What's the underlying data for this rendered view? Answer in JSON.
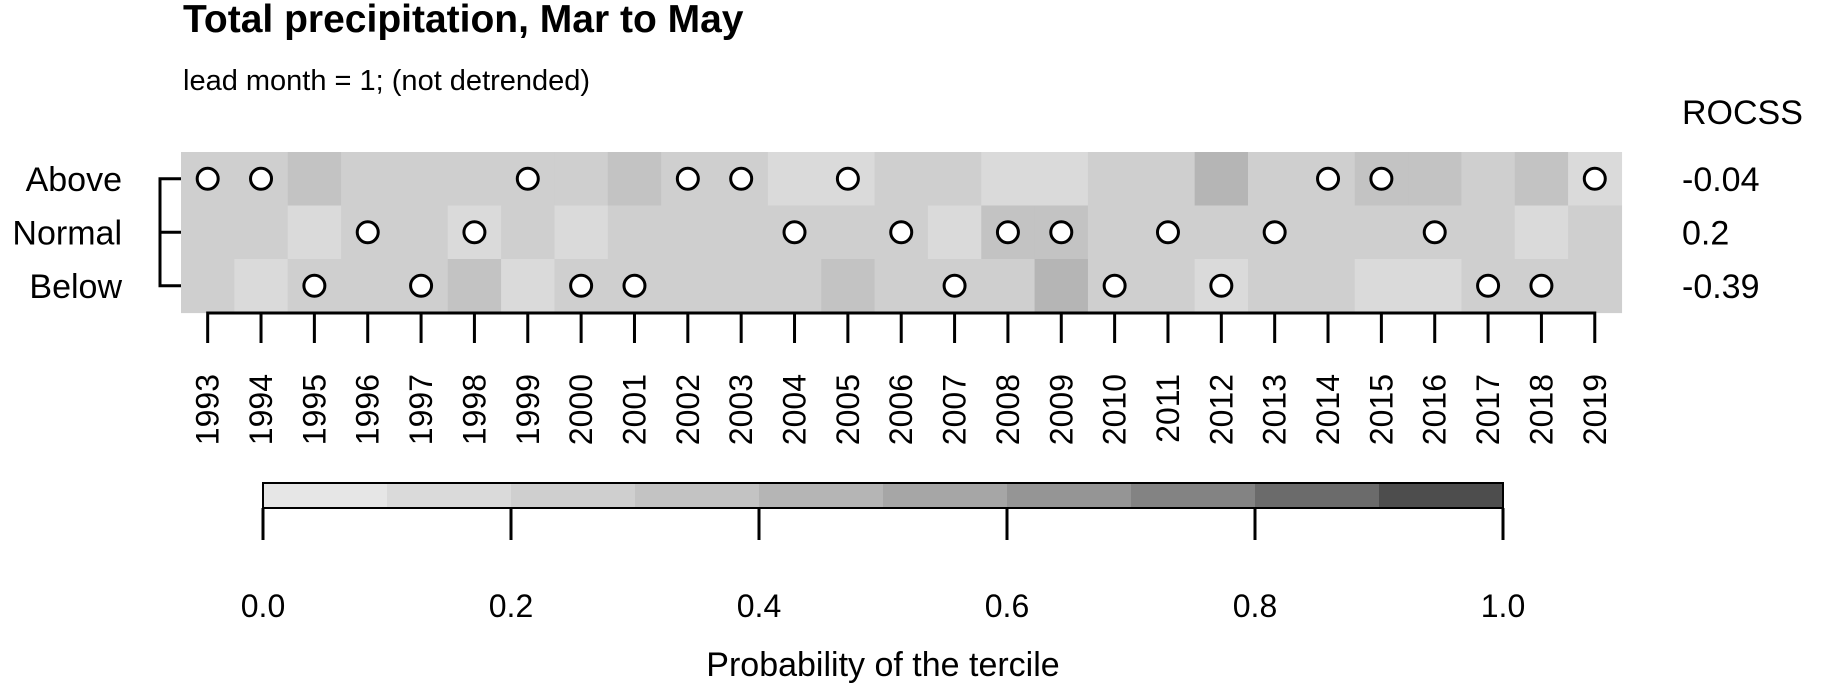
{
  "chart_data": {
    "type": "heatmap",
    "title": "Total precipitation, Mar to May",
    "subtitle": "lead month = 1; (not detrended)",
    "years": [
      1993,
      1994,
      1995,
      1996,
      1997,
      1998,
      1999,
      2000,
      2001,
      2002,
      2003,
      2004,
      2005,
      2006,
      2007,
      2008,
      2009,
      2010,
      2011,
      2012,
      2013,
      2014,
      2015,
      2016,
      2017,
      2018,
      2019
    ],
    "categories": [
      "Above",
      "Normal",
      "Below"
    ],
    "probability": {
      "Above": [
        0.25,
        0.25,
        0.35,
        0.25,
        0.25,
        0.25,
        0.25,
        0.25,
        0.35,
        0.25,
        0.25,
        0.15,
        0.15,
        0.25,
        0.25,
        0.15,
        0.15,
        0.25,
        0.25,
        0.45,
        0.25,
        0.25,
        0.35,
        0.35,
        0.25,
        0.35,
        0.15
      ],
      "Normal": [
        0.25,
        0.25,
        0.15,
        0.25,
        0.25,
        0.15,
        0.25,
        0.15,
        0.25,
        0.25,
        0.25,
        0.25,
        0.25,
        0.25,
        0.15,
        0.35,
        0.35,
        0.25,
        0.25,
        0.25,
        0.25,
        0.25,
        0.25,
        0.25,
        0.25,
        0.15,
        0.25
      ],
      "Below": [
        0.25,
        0.15,
        0.25,
        0.25,
        0.25,
        0.35,
        0.15,
        0.25,
        0.25,
        0.25,
        0.25,
        0.25,
        0.35,
        0.25,
        0.25,
        0.25,
        0.45,
        0.25,
        0.25,
        0.15,
        0.25,
        0.25,
        0.15,
        0.15,
        0.25,
        0.25,
        0.25
      ]
    },
    "observed": [
      "Above",
      "Above",
      "Below",
      "Normal",
      "Below",
      "Normal",
      "Above",
      "Below",
      "Below",
      "Above",
      "Above",
      "Normal",
      "Above",
      "Normal",
      "Below",
      "Normal",
      "Normal",
      "Below",
      "Normal",
      "Below",
      "Normal",
      "Above",
      "Above",
      "Normal",
      "Below",
      "Below",
      "Above"
    ],
    "skill_header": "ROCSS",
    "rocss": {
      "Above": "-0.04",
      "Normal": "0.2",
      "Below": "-0.39"
    },
    "colorbar": {
      "title": "Probability of the tercile",
      "range": [
        0,
        1
      ],
      "breaks": [
        0,
        0.1,
        0.2,
        0.3,
        0.4,
        0.5,
        0.6,
        0.7,
        0.8,
        0.9,
        1.0
      ],
      "colors": [
        "#e6e6e6",
        "#dadada",
        "#cfcfcf",
        "#c3c3c3",
        "#b5b5b5",
        "#a6a6a6",
        "#959595",
        "#838383",
        "#6b6b6b",
        "#4d4d4d"
      ],
      "tick_labels": [
        "0.0",
        "0.2",
        "0.4",
        "0.6",
        "0.8",
        "1.0"
      ]
    }
  }
}
